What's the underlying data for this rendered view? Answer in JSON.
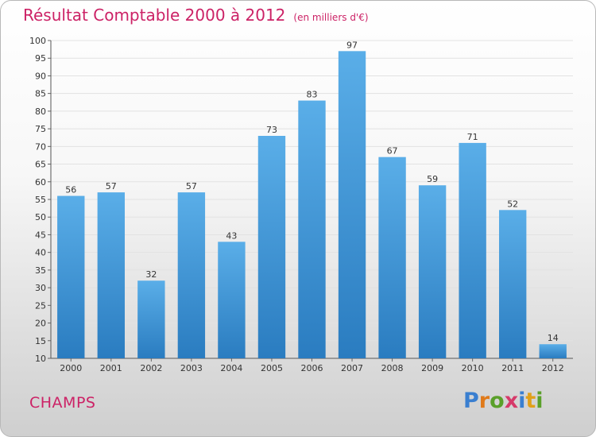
{
  "header": {
    "title": "Résultat Comptable 2000 à 2012",
    "subtitle": "(en milliers d'€)"
  },
  "footer": {
    "commune": "CHAMPS",
    "logo_text": "Proxiti"
  },
  "colors": {
    "title": "#cc2266",
    "bar_top": "#5aaee8",
    "bar_bottom": "#2a7cc0",
    "logo_letters": [
      "#3a7fd0",
      "#e07a1a",
      "#5aa02a",
      "#d63a6a",
      "#3a7fd0",
      "#e0a01a",
      "#5aa02a"
    ]
  },
  "chart_data": {
    "type": "bar",
    "title": "Résultat Comptable 2000 à 2012",
    "subtitle": "(en milliers d'€)",
    "categories": [
      "2000",
      "2001",
      "2002",
      "2003",
      "2004",
      "2005",
      "2006",
      "2007",
      "2008",
      "2009",
      "2010",
      "2011",
      "2012"
    ],
    "values": [
      56,
      57,
      32,
      57,
      43,
      73,
      83,
      97,
      67,
      59,
      71,
      52,
      14
    ],
    "ylim": [
      10,
      100
    ],
    "yticks": [
      10,
      15,
      20,
      25,
      30,
      35,
      40,
      45,
      50,
      55,
      60,
      65,
      70,
      75,
      80,
      85,
      90,
      95,
      100
    ],
    "grid": true,
    "data_labels": true
  }
}
